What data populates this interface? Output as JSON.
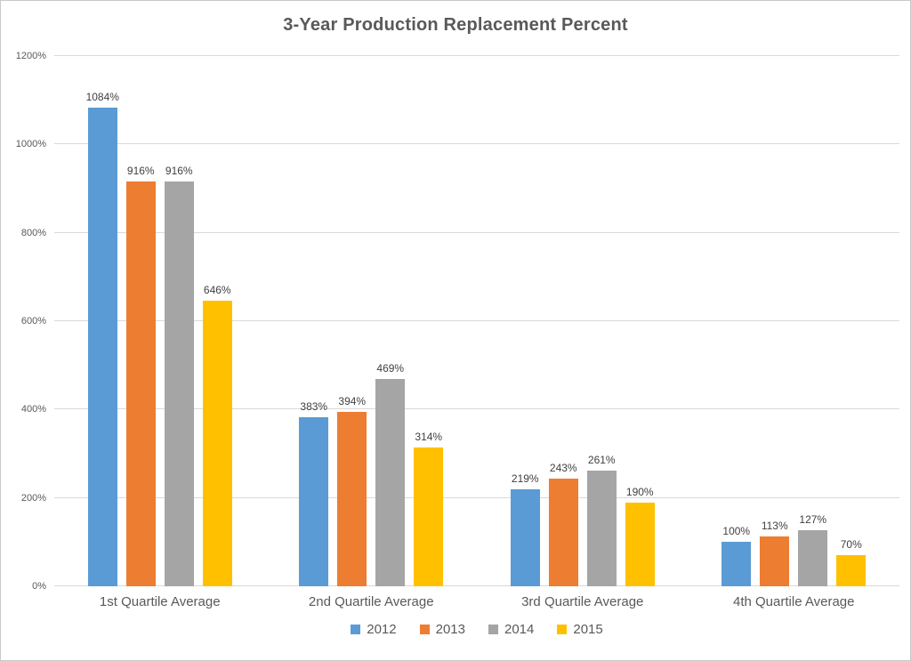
{
  "chart_data": {
    "type": "bar",
    "title": "3-Year Production Replacement Percent",
    "categories": [
      "1st Quartile Average",
      "2nd Quartile Average",
      "3rd Quartile Average",
      "4th Quartile Average"
    ],
    "series": [
      {
        "name": "2012",
        "color": "#5B9BD5",
        "values": [
          1084,
          383,
          219,
          100
        ]
      },
      {
        "name": "2013",
        "color": "#ED7D31",
        "values": [
          916,
          394,
          243,
          113
        ]
      },
      {
        "name": "2014",
        "color": "#A5A5A5",
        "values": [
          916,
          469,
          261,
          127
        ]
      },
      {
        "name": "2015",
        "color": "#FFC000",
        "values": [
          646,
          314,
          190,
          70
        ]
      }
    ],
    "ylim": [
      0,
      1200
    ],
    "ytick_step": 200,
    "yticks": [
      "0%",
      "200%",
      "400%",
      "600%",
      "800%",
      "1000%",
      "1200%"
    ],
    "data_label_suffix": "%",
    "grid": true,
    "legend_position": "bottom",
    "gridline_color": "#D9D9D9",
    "text_color": "#595959",
    "data_label_color": "#404040"
  }
}
